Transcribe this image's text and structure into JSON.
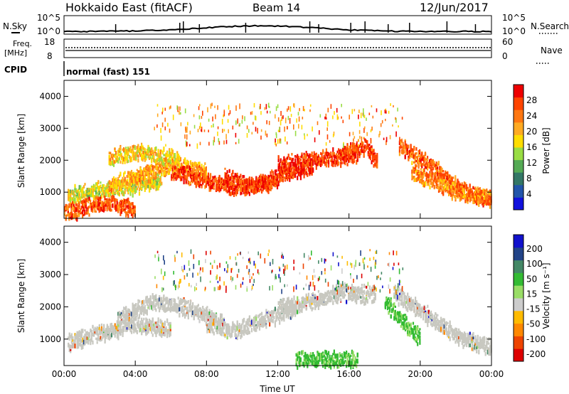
{
  "header": {
    "station": "Hokkaido East (fitACF)",
    "beam": "Beam 14",
    "date": "12/Jun/2017"
  },
  "panels": {
    "nsky": {
      "label": "N.Sky",
      "right_label": "N.Search",
      "left_ticks": [
        "10^5",
        "10^0"
      ],
      "right_ticks": [
        "10^5",
        "10^0"
      ]
    },
    "freq": {
      "label_line1": "Freq.",
      "label_line2": "[MHz]",
      "right_label": "Nave",
      "left_ticks": [
        "18",
        "8"
      ],
      "right_ticks": [
        "60",
        "0"
      ]
    },
    "cpid": {
      "label": "CPID",
      "text": "normal (fast) 151"
    }
  },
  "colors": {
    "velocity_scale": [
      "#dd0000",
      "#ee4400",
      "#ff8800",
      "#ffbb00",
      "#cccccc",
      "#99dd66",
      "#33bb33",
      "#448866",
      "#224488",
      "#1111cc"
    ],
    "ground_scatter_grey": "#c8c8c0"
  },
  "chart_data": [
    {
      "type": "heatmap",
      "quantity": "power",
      "ylabel": "Slant Range [km]",
      "ylim": [
        180,
        4500
      ],
      "yticks": [
        "1000",
        "2000",
        "3000",
        "4000"
      ],
      "xlim": [
        "00:00",
        "24:00"
      ],
      "xticks": [
        "00:00",
        "04:00",
        "08:00",
        "12:00",
        "16:00",
        "20:00",
        "00:00"
      ],
      "colorbar": {
        "label": "Power [dB]",
        "ticks": [
          "4",
          "8",
          "12",
          "16",
          "20",
          "24",
          "28"
        ],
        "range": [
          0,
          32
        ],
        "colors": [
          "#1111dd",
          "#2255aa",
          "#337766",
          "#55aa55",
          "#99dd44",
          "#ffdd00",
          "#ffaa22",
          "#ff7711",
          "#ff4400",
          "#ee0000"
        ]
      },
      "bands": [
        {
          "t0": 0.2,
          "t1": 5.5,
          "r0": 950,
          "r1": 1100,
          "r2": 1250,
          "r3": 1400,
          "level": 17
        },
        {
          "t0": 2.5,
          "t1": 8.0,
          "r0": 1250,
          "r1": 1600,
          "r2": 1900,
          "r3": 1700,
          "level": 21
        },
        {
          "t0": 6.0,
          "t1": 12.0,
          "r0": 1700,
          "r1": 1400,
          "r2": 1200,
          "r3": 1400,
          "level": 27
        },
        {
          "t0": 9.0,
          "t1": 14.0,
          "r0": 1500,
          "r1": 1250,
          "r2": 1600,
          "r3": 1900,
          "level": 28
        },
        {
          "t0": 12.0,
          "t1": 16.5,
          "r0": 1900,
          "r1": 2000,
          "r2": 2150,
          "r3": 2200,
          "level": 28
        },
        {
          "t0": 15.5,
          "t1": 17.6,
          "r0": 2200,
          "r1": 2400,
          "r2": 2500,
          "r3": 1950,
          "level": 27
        },
        {
          "t0": 18.8,
          "t1": 24.0,
          "r0": 2500,
          "r1": 1900,
          "r2": 1100,
          "r3": 800,
          "level": 25
        },
        {
          "t0": 19.5,
          "t1": 24.0,
          "r0": 1700,
          "r1": 1300,
          "r2": 1000,
          "r3": 850,
          "level": 23
        },
        {
          "t0": 0.0,
          "t1": 4.0,
          "r0": 400,
          "r1": 600,
          "r2": 700,
          "r3": 500,
          "level": 26
        },
        {
          "t0": 2.5,
          "t1": 6.5,
          "r0": 2100,
          "r1": 2300,
          "r2": 2200,
          "r3": 2050,
          "level": 19
        }
      ]
    },
    {
      "type": "heatmap",
      "quantity": "velocity",
      "ylabel": "Slant Range [km]",
      "ylim": [
        180,
        4500
      ],
      "yticks": [
        "1000",
        "2000",
        "3000",
        "4000"
      ],
      "xlim": [
        "00:00",
        "24:00"
      ],
      "xticks": [
        "00:00",
        "04:00",
        "08:00",
        "12:00",
        "16:00",
        "20:00",
        "00:00"
      ],
      "xlabel": "Time UT",
      "colorbar": {
        "label": "Velocity [m s⁻¹]",
        "ticks": [
          "200",
          "100",
          "50",
          "15",
          "-15",
          "-50",
          "-100",
          "-200"
        ],
        "range": [
          -250,
          250
        ]
      },
      "bands": [
        {
          "t0": 0.2,
          "t1": 6.0,
          "r0": 950,
          "r1": 1250,
          "r2": 1500,
          "r3": 1350,
          "level": 0
        },
        {
          "t0": 3.0,
          "t1": 9.0,
          "r0": 1700,
          "r1": 2200,
          "r2": 2000,
          "r3": 1500,
          "level": 0
        },
        {
          "t0": 8.0,
          "t1": 13.0,
          "r0": 1500,
          "r1": 1300,
          "r2": 1700,
          "r3": 2000,
          "level": 0
        },
        {
          "t0": 12.0,
          "t1": 17.5,
          "r0": 2000,
          "r1": 2200,
          "r2": 2500,
          "r3": 2400,
          "level": 0
        },
        {
          "t0": 18.5,
          "t1": 24.0,
          "r0": 2500,
          "r1": 1800,
          "r2": 1100,
          "r3": 800,
          "level": 0
        },
        {
          "t0": 13.0,
          "t1": 16.5,
          "r0": 400,
          "r1": 450,
          "r2": 420,
          "r3": 380,
          "level": 40
        },
        {
          "t0": 18.0,
          "t1": 20.0,
          "r0": 2200,
          "r1": 1800,
          "r2": 1400,
          "r3": 1100,
          "level": 30
        }
      ]
    }
  ]
}
